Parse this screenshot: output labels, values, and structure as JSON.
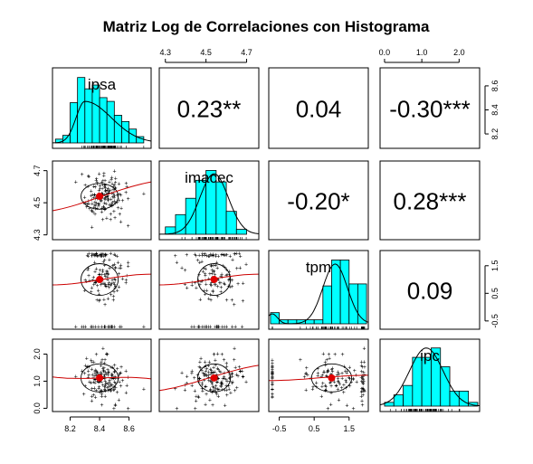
{
  "chart_data": {
    "type": "scatter",
    "title": "Matriz Log de Correlaciones con Histograma",
    "variables": [
      "ipsa",
      "imacec",
      "tpm",
      "ipc"
    ],
    "axis_ticks": {
      "ipsa": {
        "ticks": [
          8.2,
          8.4,
          8.6
        ],
        "labels": [
          "8.2",
          "8.4",
          "8.6"
        ],
        "range": [
          8.08,
          8.75
        ]
      },
      "imacec": {
        "ticks": [
          4.3,
          4.5,
          4.7
        ],
        "labels": [
          "4.3",
          "4.5",
          "4.7"
        ],
        "range": [
          4.27,
          4.76
        ]
      },
      "tpm": {
        "ticks": [
          -0.5,
          0.5,
          1.5
        ],
        "labels": [
          "-0.5",
          "0.5",
          "1.5"
        ],
        "range": [
          -0.8,
          2.05
        ]
      },
      "ipc": {
        "ticks": [
          0.0,
          1.0,
          2.0
        ],
        "labels": [
          "0.0",
          "1.0",
          "2.0"
        ],
        "range": [
          -0.12,
          2.55
        ]
      }
    },
    "axis_ticks_right": {
      "ipsa": {
        "ticks": [
          8.2,
          8.4,
          8.6
        ],
        "labels": [
          "8.2",
          "8.4",
          "8.6"
        ]
      },
      "tpm": {
        "ticks": [
          -0.5,
          0.5,
          1.5
        ],
        "labels": [
          "-0.5",
          "0.5",
          "1.5"
        ]
      }
    },
    "axis_ticks_top": {
      "imacec": {
        "ticks": [
          4.3,
          4.5,
          4.7
        ],
        "labels": [
          "4.3",
          "4.5",
          "4.7"
        ]
      },
      "ipc": {
        "ticks": [
          0.0,
          1.0,
          2.0
        ],
        "labels": [
          "0.0",
          "1.0",
          "2.0"
        ]
      }
    },
    "axis_ticks_left": {
      "imacec": {
        "ticks": [
          4.3,
          4.5,
          4.7
        ],
        "labels": [
          "4.3",
          "4.5",
          "4.7"
        ]
      },
      "ipc": {
        "ticks": [
          0.0,
          1.0,
          2.0
        ],
        "labels": [
          "0.0",
          "1.0",
          "2.0"
        ]
      }
    },
    "correlations": [
      {
        "row": "ipsa",
        "col": "imacec",
        "label": "0.23**"
      },
      {
        "row": "ipsa",
        "col": "tpm",
        "label": "0.04"
      },
      {
        "row": "ipsa",
        "col": "ipc",
        "label": "-0.30***"
      },
      {
        "row": "imacec",
        "col": "tpm",
        "label": "-0.20*"
      },
      {
        "row": "imacec",
        "col": "ipc",
        "label": "0.28***"
      },
      {
        "row": "tpm",
        "col": "ipc",
        "label": "0.09"
      }
    ],
    "histograms": {
      "ipsa": {
        "breaks": [
          8.1,
          8.15,
          8.2,
          8.25,
          8.3,
          8.35,
          8.4,
          8.45,
          8.5,
          8.55,
          8.6,
          8.65,
          8.7
        ],
        "density": [
          0.3,
          0.6,
          3.2,
          5.2,
          4.3,
          4.6,
          3.6,
          3.3,
          2.2,
          1.7,
          1.1,
          0.5
        ],
        "curve_peak": 3.3
      },
      "imacec": {
        "breaks": [
          4.3,
          4.35,
          4.4,
          4.45,
          4.5,
          4.55,
          4.6,
          4.65,
          4.7
        ],
        "density": [
          0.9,
          2.4,
          4.4,
          6.6,
          7.8,
          6.4,
          2.8,
          0.6
        ],
        "curve_peak": 7.4
      },
      "tpm": {
        "breaks": [
          -0.75,
          -0.5,
          -0.25,
          0.0,
          0.25,
          0.5,
          0.75,
          1.0,
          1.25,
          1.5,
          1.75,
          2.0
        ],
        "density": [
          0.28,
          0.1,
          0.1,
          0.1,
          0.1,
          0.1,
          0.95,
          1.6,
          1.6,
          1.0,
          1.0
        ],
        "curve_peak": 1.5
      },
      "ipc": {
        "breaks": [
          0.0,
          0.25,
          0.5,
          0.75,
          1.0,
          1.25,
          1.5,
          1.75,
          2.0,
          2.25,
          2.5
        ],
        "density": [
          0.1,
          0.3,
          0.55,
          1.3,
          1.3,
          1.55,
          1.05,
          0.4,
          0.4,
          0.1
        ],
        "curve_peak": 1.55
      }
    },
    "means": {
      "ipsa": 8.4,
      "imacec": 4.54,
      "tpm": 1.0,
      "ipc": 1.12
    },
    "sds": {
      "ipsa": 0.11,
      "imacec": 0.07,
      "tpm": 0.5,
      "ipc": 0.45
    },
    "n_points": 150
  }
}
